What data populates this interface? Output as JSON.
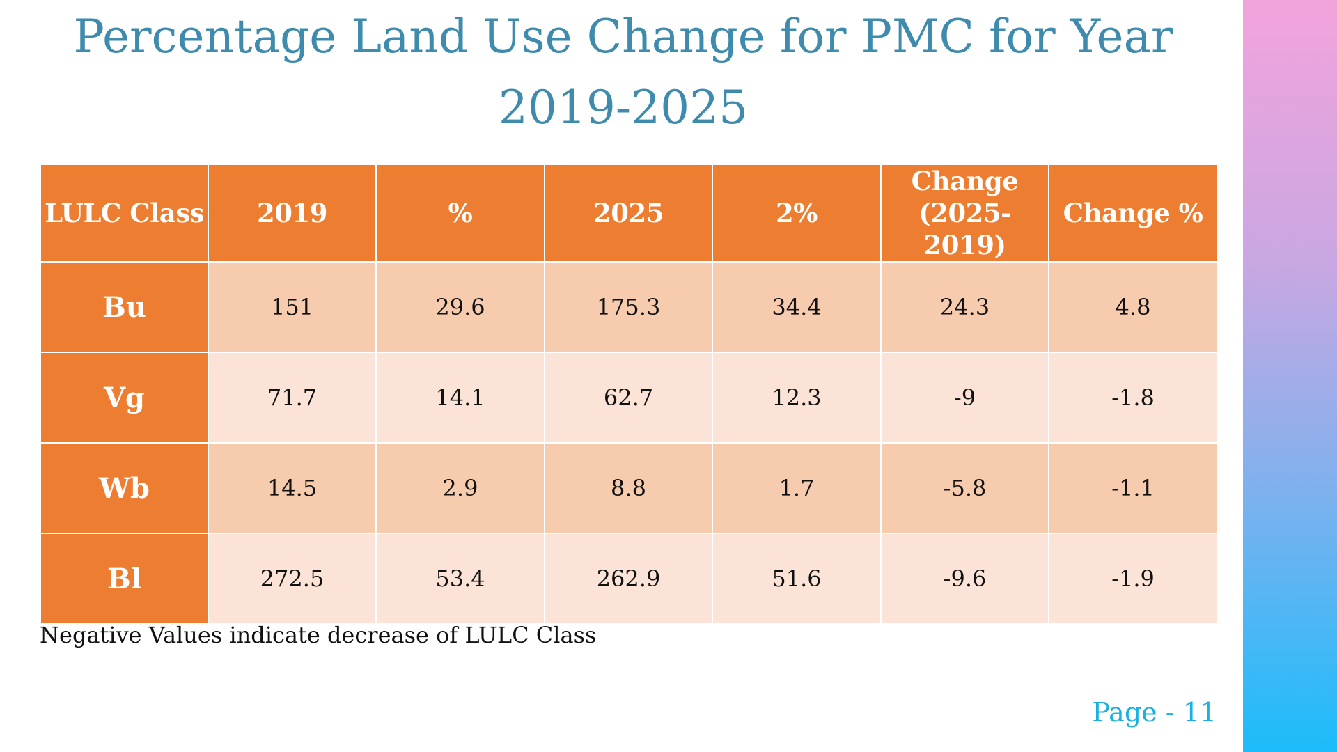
{
  "title": "Percentage Land Use Change for PMC for Year 2019-2025",
  "table": {
    "headers": [
      "LULC Class",
      "2019",
      "%",
      "2025",
      "2%",
      "Change (2025-2019)",
      "Change %"
    ],
    "rows": [
      {
        "class": "Bu",
        "cells": [
          "151",
          "29.6",
          "175.3",
          "34.4",
          "24.3",
          "4.8"
        ]
      },
      {
        "class": "Vg",
        "cells": [
          "71.7",
          "14.1",
          "62.7",
          "12.3",
          "-9",
          "-1.8"
        ]
      },
      {
        "class": "Wb",
        "cells": [
          "14.5",
          "2.9",
          "8.8",
          "1.7",
          "-5.8",
          "-1.1"
        ]
      },
      {
        "class": "Bl",
        "cells": [
          "272.5",
          "53.4",
          "262.9",
          "51.6",
          "-9.6",
          "-1.9"
        ]
      }
    ]
  },
  "note": "Negative Values indicate decrease of LULC Class",
  "page_label": "Page - 11",
  "colors": {
    "title": "#3e8bad",
    "header_bg": "#ed7d31",
    "row_odd_bg": "#f7cbae",
    "row_even_bg": "#fbe4d7",
    "page_label": "#1ab0e0"
  }
}
